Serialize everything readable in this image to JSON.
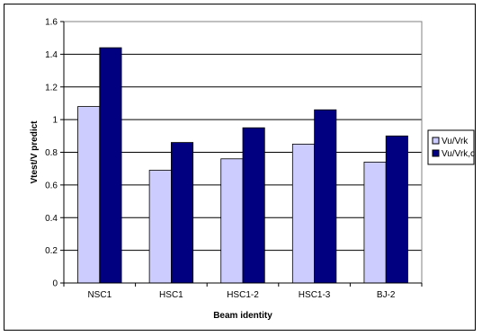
{
  "chart_data": {
    "type": "bar",
    "categories": [
      "NSC1",
      "HSC1",
      "HSC1-2",
      "HSC1-3",
      "BJ-2"
    ],
    "series": [
      {
        "name": "Vu/Vrk",
        "values": [
          1.08,
          0.69,
          0.76,
          0.85,
          0.74
        ],
        "color": "#ccccff"
      },
      {
        "name": "Vu/Vrk,c",
        "values": [
          1.44,
          0.86,
          0.95,
          1.06,
          0.9
        ],
        "color": "#000080"
      }
    ],
    "title": "",
    "xlabel": "Beam identity",
    "ylabel": "Vtest/V predict",
    "ylim": [
      0,
      1.6
    ],
    "yticks": [
      "0",
      "0.2",
      "0.4",
      "0.6",
      "0.8",
      "1",
      "1.2",
      "1.4",
      "1.6"
    ],
    "grid": true,
    "legend_position": "right",
    "plot_background": "#ffffff"
  }
}
